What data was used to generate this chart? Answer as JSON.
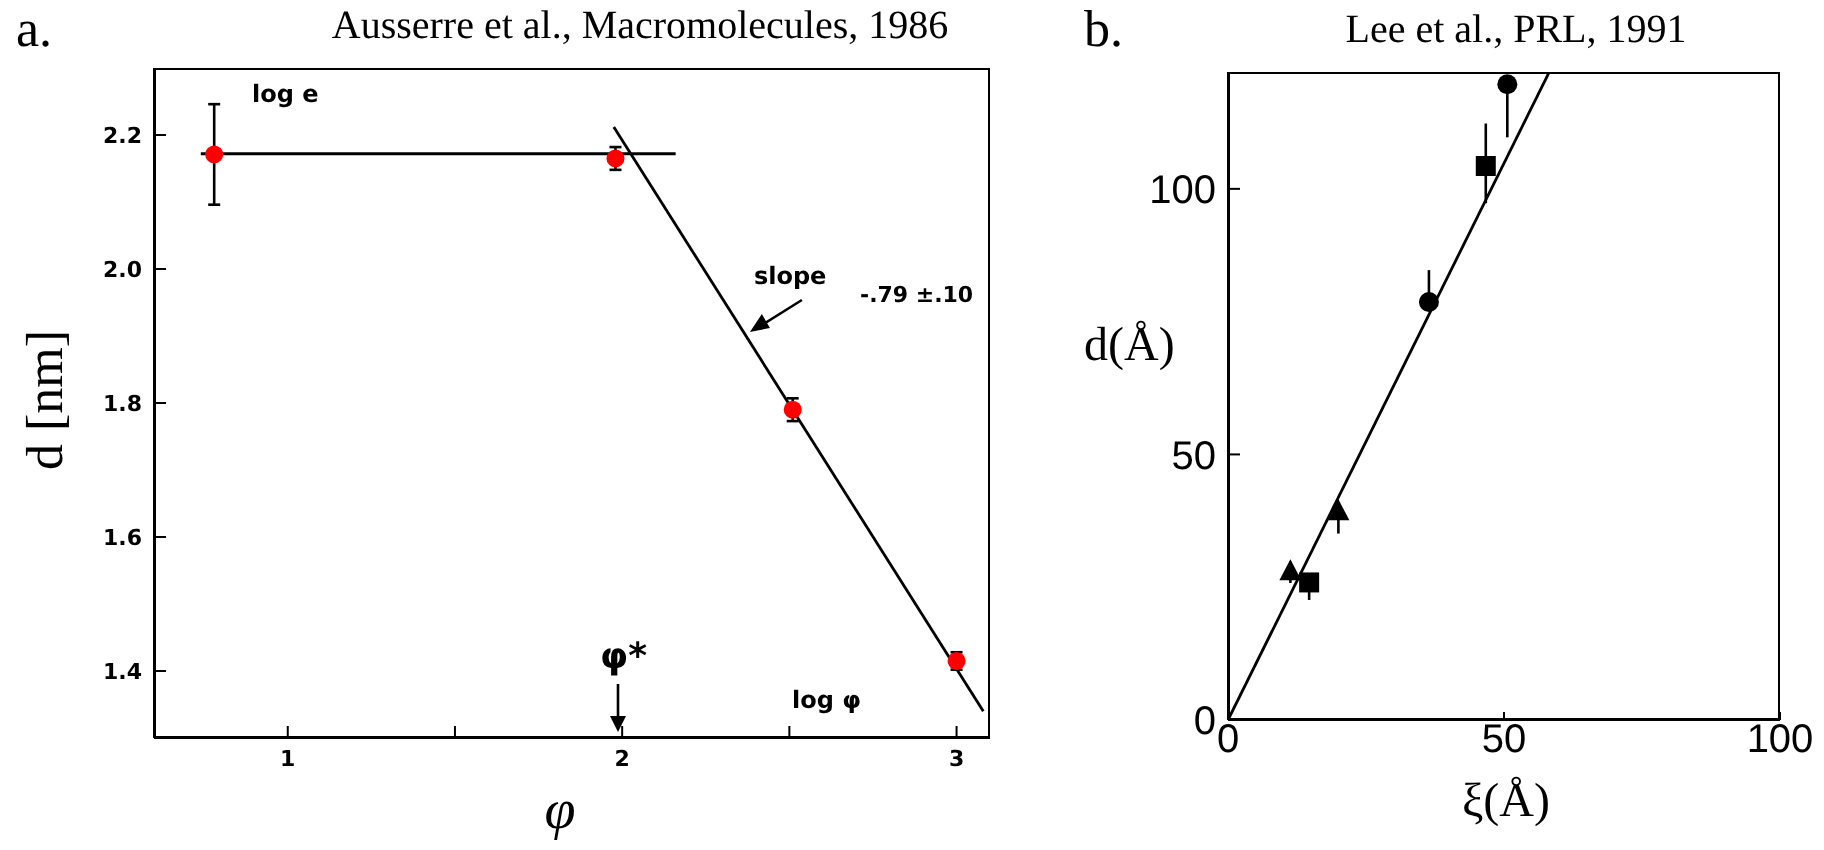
{
  "chart_data": [
    {
      "type": "scatter",
      "title": "Ausserre et al., Macromolecules, 1986",
      "xlabel": "φ",
      "ylabel": "d [nm]",
      "xlim": [
        0.6,
        3.1
      ],
      "xticks": [
        1,
        {
          "value": 1.5,
          "label": null
        },
        2,
        {
          "value": 2.5,
          "label": null
        },
        3
      ],
      "ylim": [
        1.3,
        2.3
      ],
      "yticks": [
        1.4,
        1.6,
        1.8,
        {
          "value": 2,
          "label": "2.0"
        },
        2.2
      ],
      "annotations": [
        "a.",
        "log e",
        {
          "text": "slope",
          "x": 2.37,
          "y": 1.9
        },
        "-.79 ±.10",
        "φ*",
        "log φ"
      ],
      "series": [
        {
          "color": "#ff0000",
          "marker": "circle",
          "x": [
            0.78,
            1.98,
            2.51,
            3.0
          ],
          "values": [
            2.171,
            2.165,
            1.79,
            1.415
          ],
          "errors": [
            0.075,
            0.017,
            0.017,
            0.013
          ]
        },
        {
          "type": "line",
          "color": "#000000",
          "x": [
            0.74,
            2.16
          ],
          "values": [
            2.172,
            2.172
          ]
        },
        {
          "type": "line",
          "color": "#000000",
          "x": [
            1.975,
            3.08
          ],
          "values": [
            2.212,
            1.34
          ]
        }
      ]
    },
    {
      "type": "scatter",
      "title": "Lee et al., PRL, 1991",
      "xlabel": "ξ(Å)",
      "ylabel": "d(Å)",
      "xlim": [
        0,
        100
      ],
      "xticks": [
        0,
        50,
        100
      ],
      "ylim": [
        0,
        122
      ],
      "yticks": [
        0,
        50,
        100
      ],
      "annotations": [
        "b."
      ],
      "series": [
        {
          "color": "#000000",
          "marker": "triangle",
          "x": [
            11.3,
            20
          ],
          "values": [
            27.8,
            39.1
          ],
          "errors": [
            [
              25.8,
              29.8
            ],
            [
              35.1,
              39.1
            ]
          ]
        },
        {
          "color": "#000000",
          "marker": "square",
          "x": [
            14.7,
            46.7
          ],
          "values": [
            25.9,
            104.3
          ],
          "errors": [
            [
              22.6,
              25.9
            ],
            [
              97.3,
              112.3
            ]
          ]
        },
        {
          "color": "#000000",
          "marker": "circle",
          "x": [
            36.4,
            50.6
          ],
          "values": [
            78.7,
            119.7
          ],
          "errors": [
            [
              77.7,
              84.7
            ],
            [
              109.7,
              119.7
            ]
          ]
        },
        {
          "type": "line",
          "color": "#000000",
          "x": [
            0,
            58.1
          ],
          "values": [
            0,
            121.8
          ]
        }
      ]
    }
  ]
}
